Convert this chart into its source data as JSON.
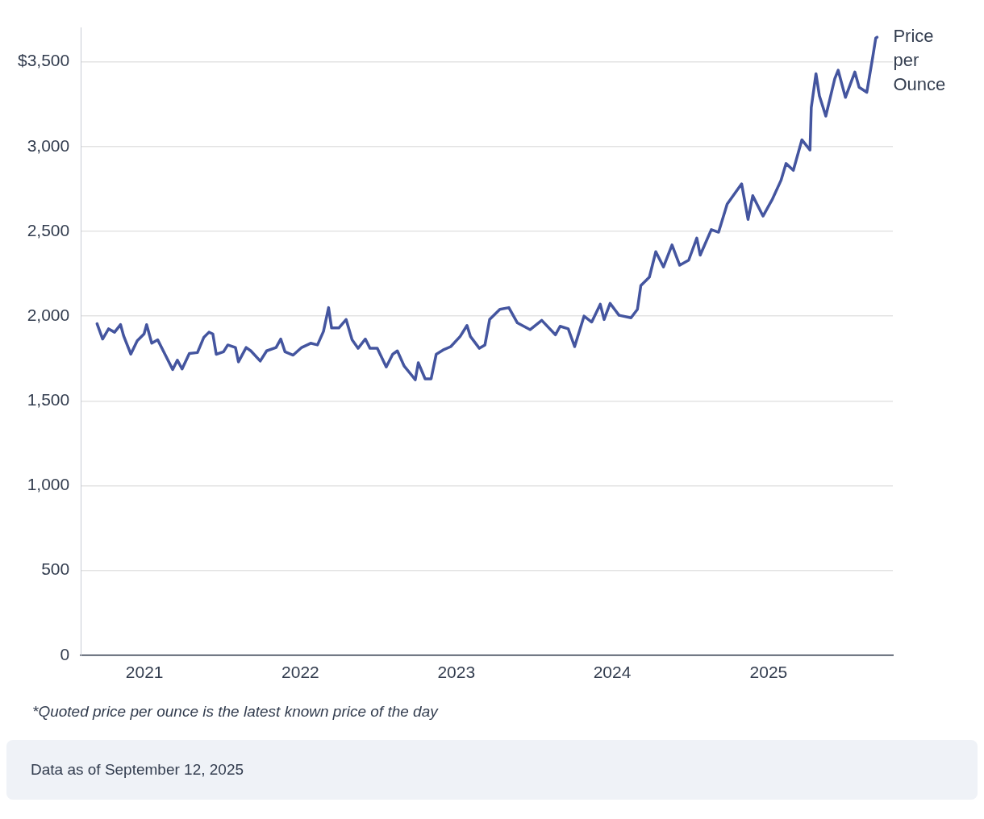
{
  "chart_data": {
    "type": "line",
    "annotations": [
      "*Quoted price per ounce is the latest known price of the day",
      "Data as of September 12, 2025"
    ],
    "x": [
      "2020-09-12",
      "2020-09-25",
      "2020-10-09",
      "2020-10-23",
      "2020-11-06",
      "2020-11-13",
      "2020-11-30",
      "2020-12-15",
      "2020-12-31",
      "2021-01-06",
      "2021-01-18",
      "2021-02-01",
      "2021-02-18",
      "2021-03-08",
      "2021-03-19",
      "2021-03-30",
      "2021-04-16",
      "2021-05-05",
      "2021-05-20",
      "2021-06-01",
      "2021-06-10",
      "2021-06-18",
      "2021-07-05",
      "2021-07-15",
      "2021-08-02",
      "2021-08-09",
      "2021-08-27",
      "2021-09-07",
      "2021-09-29",
      "2021-10-14",
      "2021-11-05",
      "2021-11-16",
      "2021-11-26",
      "2021-12-15",
      "2022-01-04",
      "2022-01-25",
      "2022-02-10",
      "2022-02-24",
      "2022-03-08",
      "2022-03-15",
      "2022-04-01",
      "2022-04-18",
      "2022-05-02",
      "2022-05-16",
      "2022-06-02",
      "2022-06-13",
      "2022-06-30",
      "2022-07-21",
      "2022-08-05",
      "2022-08-16",
      "2022-09-01",
      "2022-09-27",
      "2022-10-04",
      "2022-10-20",
      "2022-11-03",
      "2022-11-15",
      "2022-12-01",
      "2022-12-19",
      "2023-01-10",
      "2023-01-26",
      "2023-02-03",
      "2023-02-24",
      "2023-03-09",
      "2023-03-20",
      "2023-04-13",
      "2023-05-04",
      "2023-05-24",
      "2023-06-23",
      "2023-07-20",
      "2023-08-21",
      "2023-09-01",
      "2023-09-20",
      "2023-10-05",
      "2023-10-27",
      "2023-11-14",
      "2023-12-04",
      "2023-12-13",
      "2023-12-27",
      "2024-01-17",
      "2024-02-14",
      "2024-02-29",
      "2024-03-08",
      "2024-03-28",
      "2024-04-12",
      "2024-04-30",
      "2024-05-20",
      "2024-06-07",
      "2024-06-28",
      "2024-07-17",
      "2024-07-25",
      "2024-08-20",
      "2024-09-06",
      "2024-09-26",
      "2024-10-30",
      "2024-11-14",
      "2024-11-25",
      "2024-12-19",
      "2025-01-10",
      "2025-01-30",
      "2025-02-11",
      "2025-02-28",
      "2025-03-20",
      "2025-04-08",
      "2025-04-11",
      "2025-04-22",
      "2025-04-30",
      "2025-05-15",
      "2025-06-05",
      "2025-06-13",
      "2025-06-30",
      "2025-07-22",
      "2025-08-01",
      "2025-08-19",
      "2025-09-02",
      "2025-09-09",
      "2025-09-12"
    ],
    "series": [
      {
        "name": "Price per Ounce",
        "color": "#44559f",
        "values": [
          1955,
          1865,
          1925,
          1905,
          1950,
          1885,
          1776,
          1855,
          1895,
          1950,
          1840,
          1860,
          1775,
          1685,
          1740,
          1688,
          1780,
          1785,
          1875,
          1905,
          1895,
          1775,
          1790,
          1830,
          1815,
          1730,
          1815,
          1795,
          1735,
          1795,
          1815,
          1865,
          1790,
          1770,
          1815,
          1840,
          1830,
          1910,
          2050,
          1930,
          1930,
          1980,
          1860,
          1810,
          1865,
          1810,
          1810,
          1700,
          1775,
          1795,
          1705,
          1625,
          1725,
          1630,
          1630,
          1775,
          1800,
          1820,
          1880,
          1945,
          1880,
          1810,
          1830,
          1980,
          2040,
          2050,
          1960,
          1920,
          1975,
          1890,
          1940,
          1925,
          1820,
          2000,
          1965,
          2070,
          1980,
          2075,
          2005,
          1990,
          2040,
          2180,
          2230,
          2380,
          2290,
          2420,
          2300,
          2330,
          2460,
          2360,
          2510,
          2495,
          2660,
          2780,
          2570,
          2710,
          2590,
          2690,
          2800,
          2900,
          2860,
          3040,
          2980,
          3230,
          3430,
          3300,
          3180,
          3400,
          3450,
          3290,
          3440,
          3350,
          3320,
          3530,
          3640,
          3645
        ]
      }
    ],
    "xlim": [
      "2020-08-05",
      "2025-10-19"
    ],
    "xticks": [
      {
        "value": "2021-01-01",
        "label": "2021"
      },
      {
        "value": "2022-01-01",
        "label": "2022"
      },
      {
        "value": "2023-01-01",
        "label": "2023"
      },
      {
        "value": "2024-01-01",
        "label": "2024"
      },
      {
        "value": "2025-01-01",
        "label": "2025"
      }
    ],
    "ylim": [
      0,
      3700
    ],
    "yticks": [
      0,
      {
        "value": 500,
        "label": "500"
      },
      {
        "value": 1000,
        "label": "1,000"
      },
      {
        "value": 1500,
        "label": "1,500"
      },
      {
        "value": 2000,
        "label": "2,000"
      },
      {
        "value": 2500,
        "label": "2,500"
      },
      {
        "value": 3000,
        "label": "3,000"
      },
      {
        "value": 3500,
        "label": "$3,500"
      }
    ],
    "grid": "y",
    "legend": false,
    "marker": "none",
    "line_style": "solid"
  }
}
